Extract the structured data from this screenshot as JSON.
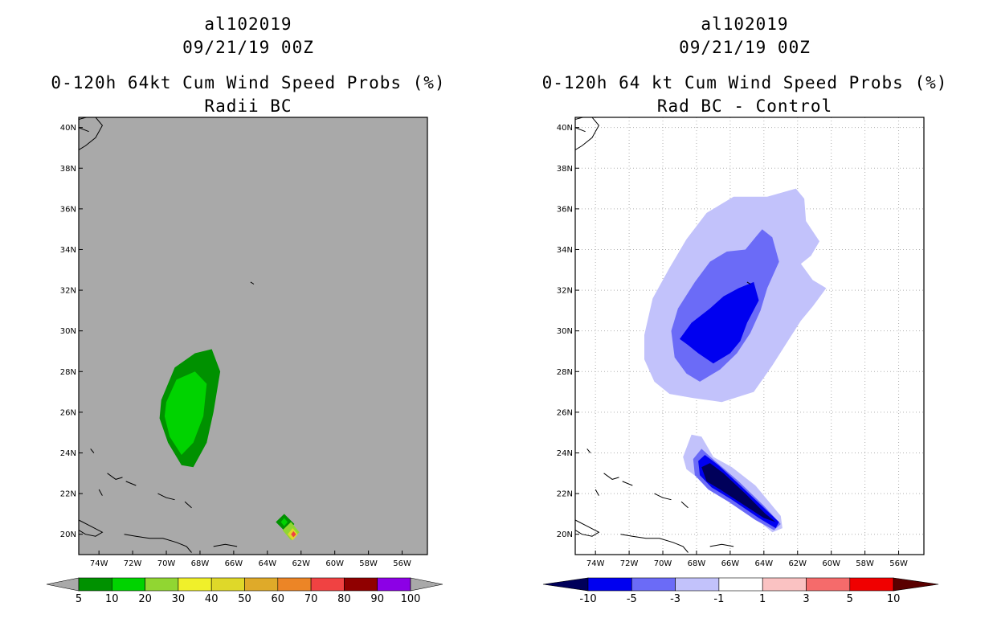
{
  "panels": [
    {
      "storm_id": "al102019",
      "datetime": "09/21/19 00Z",
      "title": "0-120h 64kt Cum Wind Speed Probs (%)",
      "subtitle": "Radii BC",
      "colorbar": {
        "labels": [
          "5",
          "10",
          "20",
          "30",
          "40",
          "50",
          "60",
          "70",
          "80",
          "90",
          "100"
        ],
        "colors": [
          "#009100",
          "#00d300",
          "#91d632",
          "#f0f02a",
          "#dfd829",
          "#dfaa29",
          "#ec8526",
          "#f04242",
          "#900000",
          "#8c00e6"
        ],
        "end_color": "#a9a9a9"
      }
    },
    {
      "storm_id": "al102019",
      "datetime": "09/21/19 00Z",
      "title": "0-120h 64 kt Cum Wind Speed Probs (%)",
      "subtitle": "Rad BC - Control",
      "colorbar": {
        "labels": [
          "-10",
          "-5",
          "-3",
          "-1",
          "1",
          "3",
          "5",
          "10"
        ],
        "colors": [
          "#0000f0",
          "#6b6bf7",
          "#c2c2fb",
          "#ffffff",
          "#fac2c2",
          "#f56b6b",
          "#f00000"
        ],
        "end_low": "#00005a",
        "end_high": "#5a0000"
      }
    }
  ],
  "chart_data": [
    {
      "type": "contour-map",
      "title": "0-120h 64kt Cum Wind Speed Probs (%)",
      "subtitle": "Radii BC",
      "xlabel": "",
      "ylabel": "",
      "xlim": [
        -75.2,
        -54.5
      ],
      "ylim": [
        19,
        40.5
      ],
      "x_ticks": [
        -74,
        -72,
        -70,
        -68,
        -66,
        -64,
        -62,
        -60,
        -58,
        -56
      ],
      "x_tick_labels": [
        "74W",
        "72W",
        "70W",
        "68W",
        "66W",
        "64W",
        "62W",
        "60W",
        "58W",
        "56W"
      ],
      "y_ticks": [
        20,
        22,
        24,
        26,
        28,
        30,
        32,
        34,
        36,
        38,
        40
      ],
      "y_tick_labels": [
        "20N",
        "22N",
        "24N",
        "26N",
        "28N",
        "30N",
        "32N",
        "34N",
        "36N",
        "38N",
        "40N"
      ],
      "grid": false,
      "background": "#a9a9a9",
      "regions": [
        {
          "level": "5-10",
          "color": "#009100",
          "outline": [
            [
              -70.3,
              26.6
            ],
            [
              -69.5,
              28.2
            ],
            [
              -68.3,
              28.9
            ],
            [
              -67.3,
              29.1
            ],
            [
              -66.8,
              28
            ],
            [
              -67.2,
              26
            ],
            [
              -67.6,
              24.5
            ],
            [
              -68.4,
              23.3
            ],
            [
              -69.1,
              23.4
            ],
            [
              -69.9,
              24.5
            ],
            [
              -70.4,
              25.7
            ]
          ]
        },
        {
          "level": "10-20",
          "color": "#00d300",
          "outline": [
            [
              -70.0,
              26.5
            ],
            [
              -69.4,
              27.6
            ],
            [
              -68.3,
              28.0
            ],
            [
              -67.6,
              27.4
            ],
            [
              -67.8,
              25.8
            ],
            [
              -68.4,
              24.5
            ],
            [
              -69.1,
              23.9
            ],
            [
              -69.8,
              24.8
            ],
            [
              -70.1,
              25.8
            ]
          ]
        },
        {
          "level": "5-10",
          "color": "#009100",
          "outline": [
            [
              -63.5,
              20.6
            ],
            [
              -63.0,
              21.0
            ],
            [
              -62.4,
              20.5
            ],
            [
              -62.9,
              20.1
            ]
          ]
        },
        {
          "level": "20-30",
          "color": "#91d632",
          "outline": [
            [
              -63.1,
              20.2
            ],
            [
              -62.6,
              20.6
            ],
            [
              -62.1,
              20.1
            ],
            [
              -62.6,
              19.7
            ]
          ]
        },
        {
          "level": "40-50",
          "color": "#dfd829",
          "outline": [
            [
              -62.8,
              20.0
            ],
            [
              -62.5,
              20.3
            ],
            [
              -62.2,
              20.0
            ],
            [
              -62.5,
              19.7
            ]
          ]
        },
        {
          "level": "70-80",
          "color": "#f04242",
          "outline": [
            [
              -62.6,
              20.0
            ],
            [
              -62.45,
              20.15
            ],
            [
              -62.3,
              20.0
            ],
            [
              -62.45,
              19.85
            ]
          ]
        },
        {
          "level": "10-20",
          "color": "#00d300",
          "outline": [
            [
              -63.2,
              20.6
            ],
            [
              -63.0,
              20.8
            ],
            [
              -62.8,
              20.6
            ],
            [
              -63.0,
              20.4
            ]
          ]
        }
      ]
    },
    {
      "type": "contour-map",
      "title": "0-120h 64 kt Cum Wind Speed Probs (%)",
      "subtitle": "Rad BC - Control",
      "xlabel": "",
      "ylabel": "",
      "xlim": [
        -75.2,
        -54.5
      ],
      "ylim": [
        19,
        40.5
      ],
      "x_ticks": [
        -74,
        -72,
        -70,
        -68,
        -66,
        -64,
        -62,
        -60,
        -58,
        -56
      ],
      "x_tick_labels": [
        "74W",
        "72W",
        "70W",
        "68W",
        "66W",
        "64W",
        "62W",
        "60W",
        "58W",
        "56W"
      ],
      "y_ticks": [
        20,
        22,
        24,
        26,
        28,
        30,
        32,
        34,
        36,
        38,
        40
      ],
      "y_tick_labels": [
        "20N",
        "22N",
        "24N",
        "26N",
        "28N",
        "30N",
        "32N",
        "34N",
        "36N",
        "38N",
        "40N"
      ],
      "grid": true,
      "background": "#ffffff",
      "regions": [
        {
          "level": "-3 to -1",
          "color": "#c2c2fb",
          "outline": [
            [
              -71.1,
              29.8
            ],
            [
              -70.6,
              31.6
            ],
            [
              -69.6,
              33.1
            ],
            [
              -68.6,
              34.5
            ],
            [
              -67.4,
              35.8
            ],
            [
              -65.8,
              36.6
            ],
            [
              -63.8,
              36.6
            ],
            [
              -62.1,
              37.0
            ],
            [
              -61.6,
              36.5
            ],
            [
              -61.5,
              35.4
            ],
            [
              -60.7,
              34.4
            ],
            [
              -61.2,
              33.7
            ],
            [
              -61.8,
              33.3
            ],
            [
              -61.1,
              32.5
            ],
            [
              -60.3,
              32.1
            ],
            [
              -61.1,
              31.2
            ],
            [
              -61.8,
              30.5
            ],
            [
              -62.5,
              29.6
            ],
            [
              -63.5,
              28.3
            ],
            [
              -64.6,
              27.0
            ],
            [
              -66.5,
              26.5
            ],
            [
              -68.2,
              26.7
            ],
            [
              -69.6,
              26.9
            ],
            [
              -70.5,
              27.5
            ],
            [
              -71.1,
              28.6
            ]
          ]
        },
        {
          "level": "-5 to -3",
          "color": "#6b6bf7",
          "outline": [
            [
              -69.5,
              30.0
            ],
            [
              -69.1,
              31.1
            ],
            [
              -68.1,
              32.4
            ],
            [
              -67.2,
              33.4
            ],
            [
              -66.2,
              33.9
            ],
            [
              -65.1,
              34.0
            ],
            [
              -64.5,
              34.6
            ],
            [
              -64.1,
              35.0
            ],
            [
              -63.5,
              34.6
            ],
            [
              -63.1,
              33.4
            ],
            [
              -63.8,
              32.1
            ],
            [
              -64.2,
              31.0
            ],
            [
              -64.8,
              29.9
            ],
            [
              -65.6,
              28.9
            ],
            [
              -66.6,
              28.1
            ],
            [
              -67.8,
              27.5
            ],
            [
              -68.6,
              27.9
            ],
            [
              -69.3,
              28.7
            ]
          ]
        },
        {
          "level": "-10 to -5",
          "color": "#0000f0",
          "outline": [
            [
              -69.0,
              29.6
            ],
            [
              -68.3,
              30.4
            ],
            [
              -67.2,
              31.1
            ],
            [
              -66.4,
              31.7
            ],
            [
              -65.5,
              32.1
            ],
            [
              -64.6,
              32.4
            ],
            [
              -64.3,
              31.5
            ],
            [
              -65.0,
              30.4
            ],
            [
              -65.4,
              29.5
            ],
            [
              -66.0,
              28.9
            ],
            [
              -67.0,
              28.4
            ],
            [
              -67.9,
              28.9
            ],
            [
              -68.5,
              29.3
            ]
          ]
        },
        {
          "level": "-3 to -1",
          "color": "#c2c2fb",
          "outline": [
            [
              -68.8,
              23.8
            ],
            [
              -68.3,
              24.9
            ],
            [
              -67.7,
              24.8
            ],
            [
              -67.0,
              23.8
            ],
            [
              -65.9,
              23.3
            ],
            [
              -64.5,
              22.4
            ],
            [
              -63.0,
              20.9
            ],
            [
              -62.9,
              20.3
            ],
            [
              -63.5,
              20.1
            ],
            [
              -64.5,
              20.8
            ],
            [
              -66.2,
              21.8
            ],
            [
              -67.5,
              22.5
            ],
            [
              -68.6,
              23.2
            ]
          ]
        },
        {
          "level": "-5 to -3",
          "color": "#6b6bf7",
          "outline": [
            [
              -68.2,
              23.7
            ],
            [
              -67.7,
              24.2
            ],
            [
              -66.9,
              23.6
            ],
            [
              -65.5,
              22.6
            ],
            [
              -64.0,
              21.4
            ],
            [
              -63.0,
              20.5
            ],
            [
              -63.4,
              20.2
            ],
            [
              -64.5,
              20.7
            ],
            [
              -66.1,
              21.6
            ],
            [
              -67.3,
              22.2
            ],
            [
              -68.1,
              22.9
            ]
          ]
        },
        {
          "level": "-10 to -5",
          "color": "#0000f0",
          "outline": [
            [
              -67.9,
              23.6
            ],
            [
              -67.5,
              23.9
            ],
            [
              -66.7,
              23.4
            ],
            [
              -65.4,
              22.4
            ],
            [
              -64.0,
              21.3
            ],
            [
              -63.1,
              20.6
            ],
            [
              -63.3,
              20.3
            ],
            [
              -64.3,
              20.8
            ],
            [
              -65.9,
              21.7
            ],
            [
              -67.1,
              22.3
            ],
            [
              -67.8,
              22.9
            ]
          ]
        },
        {
          "level": "< -10",
          "color": "#00005a",
          "outline": [
            [
              -67.7,
              23.3
            ],
            [
              -67.2,
              23.5
            ],
            [
              -66.4,
              23.0
            ],
            [
              -65.1,
              22.0
            ],
            [
              -63.9,
              21.0
            ],
            [
              -63.3,
              20.6
            ],
            [
              -64.0,
              20.8
            ],
            [
              -65.3,
              21.5
            ],
            [
              -66.6,
              22.2
            ],
            [
              -67.4,
              22.6
            ]
          ]
        }
      ]
    }
  ]
}
